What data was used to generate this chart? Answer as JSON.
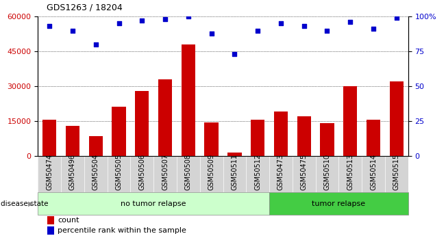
{
  "title": "GDS1263 / 18204",
  "samples": [
    "GSM50474",
    "GSM50496",
    "GSM50504",
    "GSM50505",
    "GSM50506",
    "GSM50507",
    "GSM50508",
    "GSM50509",
    "GSM50511",
    "GSM50512",
    "GSM50473",
    "GSM50475",
    "GSM50510",
    "GSM50513",
    "GSM50514",
    "GSM50515"
  ],
  "counts": [
    15500,
    13000,
    8500,
    21000,
    28000,
    33000,
    48000,
    14500,
    1500,
    15500,
    19000,
    17000,
    14000,
    30000,
    15500,
    32000
  ],
  "percentiles": [
    93,
    90,
    80,
    95,
    97,
    98,
    100,
    88,
    73,
    90,
    95,
    93,
    90,
    96,
    91,
    99
  ],
  "no_tumor_count": 10,
  "tumor_count": 6,
  "bar_color": "#cc0000",
  "dot_color": "#0000cc",
  "no_tumor_fill": "#ccffcc",
  "tumor_fill": "#44cc44",
  "xtick_bg": "#d4d4d4",
  "left_ylim": [
    0,
    60000
  ],
  "right_ylim": [
    0,
    100
  ],
  "left_yticks": [
    0,
    15000,
    30000,
    45000,
    60000
  ],
  "right_yticks": [
    0,
    25,
    50,
    75,
    100
  ],
  "grid_color": "#000000"
}
